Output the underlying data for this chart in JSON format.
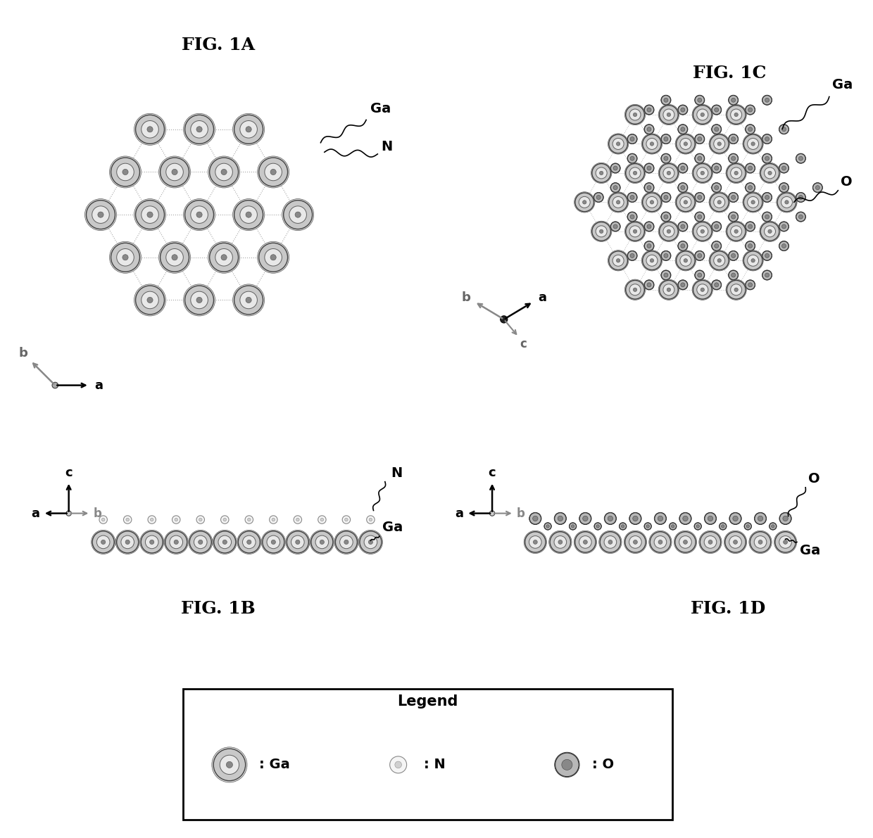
{
  "bg_color": "#ffffff",
  "bond_color": "#888888",
  "fig1A_title": "FIG. 1A",
  "fig1B_title": "FIG. 1B",
  "fig1C_title": "FIG. 1C",
  "fig1D_title": "FIG. 1D",
  "legend_title": "Legend"
}
